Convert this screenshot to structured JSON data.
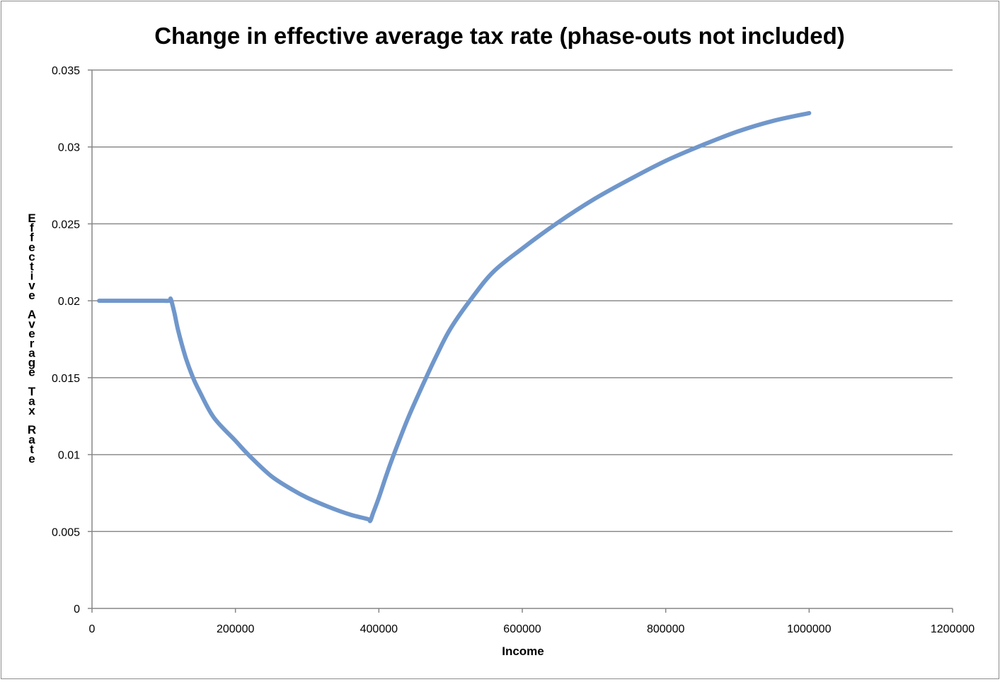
{
  "chart_data": {
    "type": "line",
    "title": "Change in effective average tax rate (phase-outs not included)",
    "xlabel": "Income",
    "ylabel": "Effective Average Tax Rate",
    "xlim": [
      0,
      1200000
    ],
    "ylim": [
      0,
      0.035
    ],
    "x_ticks": [
      "0",
      "200000",
      "400000",
      "600000",
      "800000",
      "1000000",
      "1200000"
    ],
    "y_ticks": [
      "0",
      "0.005",
      "0.01",
      "0.015",
      "0.02",
      "0.025",
      "0.03",
      "0.035"
    ],
    "grid": true,
    "legend": "none",
    "series_color": "#7097cb",
    "series": [
      {
        "x": [
          10000,
          30000,
          60000,
          90000,
          100000,
          108000,
          110000,
          115000,
          120000,
          130000,
          140000,
          150000,
          170000,
          200000,
          220000,
          250000,
          280000,
          300000,
          330000,
          360000,
          385000,
          388000,
          392000,
          400000,
          410000,
          420000,
          440000,
          460000,
          480000,
          500000,
          530000,
          560000,
          600000,
          650000,
          700000,
          750000,
          800000,
          850000,
          900000,
          950000,
          1000000
        ],
        "values": [
          0.02,
          0.02,
          0.02,
          0.02,
          0.02,
          0.02,
          0.0201,
          0.0192,
          0.0181,
          0.0164,
          0.0151,
          0.0141,
          0.0124,
          0.0109,
          0.0099,
          0.0086,
          0.0077,
          0.0072,
          0.0066,
          0.0061,
          0.0058,
          0.0057,
          0.0062,
          0.0072,
          0.0086,
          0.0099,
          0.0123,
          0.0144,
          0.0164,
          0.0182,
          0.0202,
          0.0219,
          0.0234,
          0.0251,
          0.0266,
          0.0279,
          0.0291,
          0.0301,
          0.031,
          0.0317,
          0.0322
        ]
      }
    ]
  }
}
